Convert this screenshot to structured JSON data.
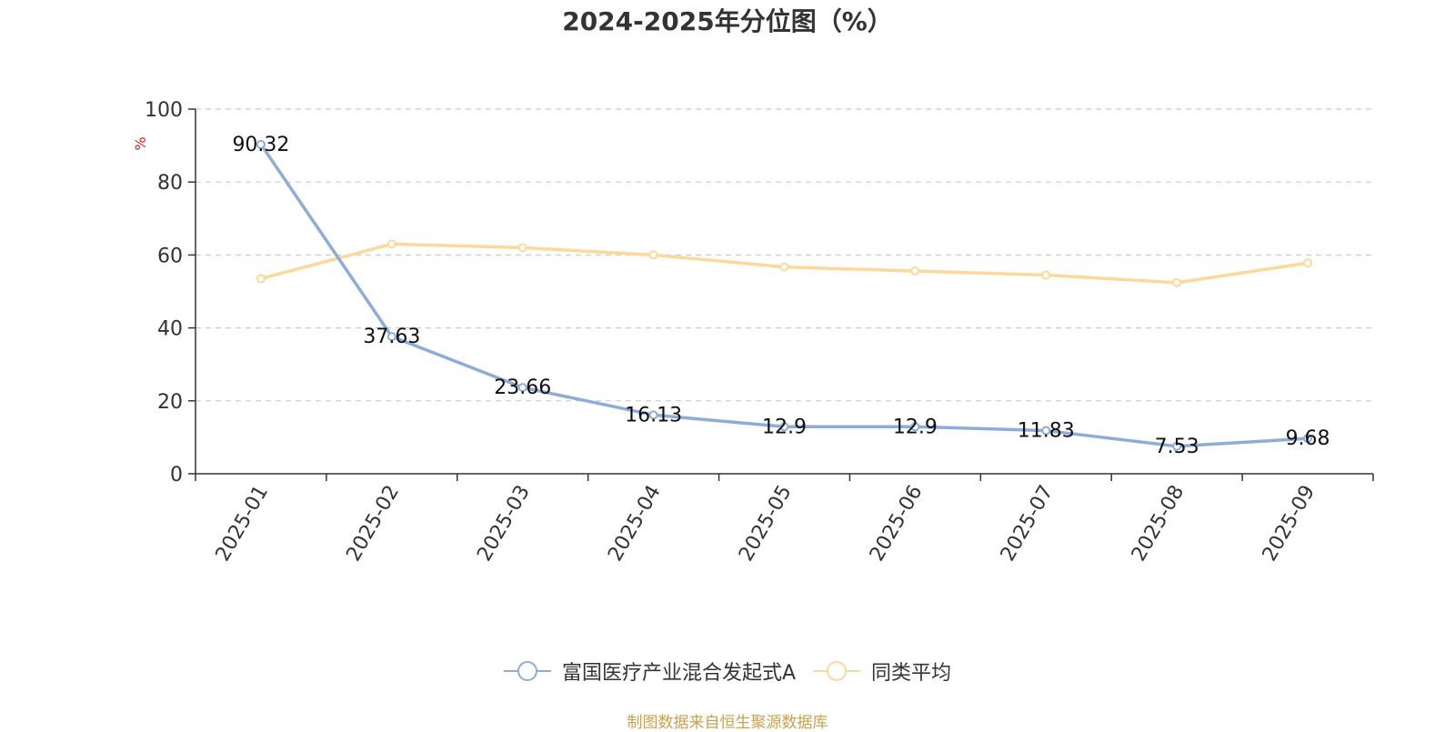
{
  "page": {
    "source_note": "制图数据来自恒生聚源数据库"
  },
  "chart_data": {
    "type": "line",
    "title": "2024-2025年分位图（%）",
    "ylabel": "%",
    "xlabel": "",
    "ylim": [
      0,
      100
    ],
    "yticks": [
      0,
      20,
      40,
      60,
      80,
      100
    ],
    "grid": true,
    "legend_position": "bottom",
    "categories": [
      "2025-01",
      "2025-02",
      "2025-03",
      "2025-04",
      "2025-05",
      "2025-06",
      "2025-07",
      "2025-08",
      "2025-09"
    ],
    "series": [
      {
        "name": "富国医疗产业混合发起式A",
        "color": "#8eacd9",
        "values": [
          90.32,
          37.63,
          23.66,
          16.13,
          12.9,
          12.9,
          11.83,
          7.53,
          9.68
        ],
        "labels": [
          "90.32",
          "37.63",
          "23.66",
          "16.13",
          "12.9",
          "12.9",
          "11.83",
          "7.53",
          "9.68"
        ]
      },
      {
        "name": "同类平均",
        "color": "#fdd89a",
        "values": [
          53.5,
          63.0,
          62.0,
          60.0,
          56.7,
          55.6,
          54.5,
          52.4,
          57.8
        ]
      }
    ]
  }
}
